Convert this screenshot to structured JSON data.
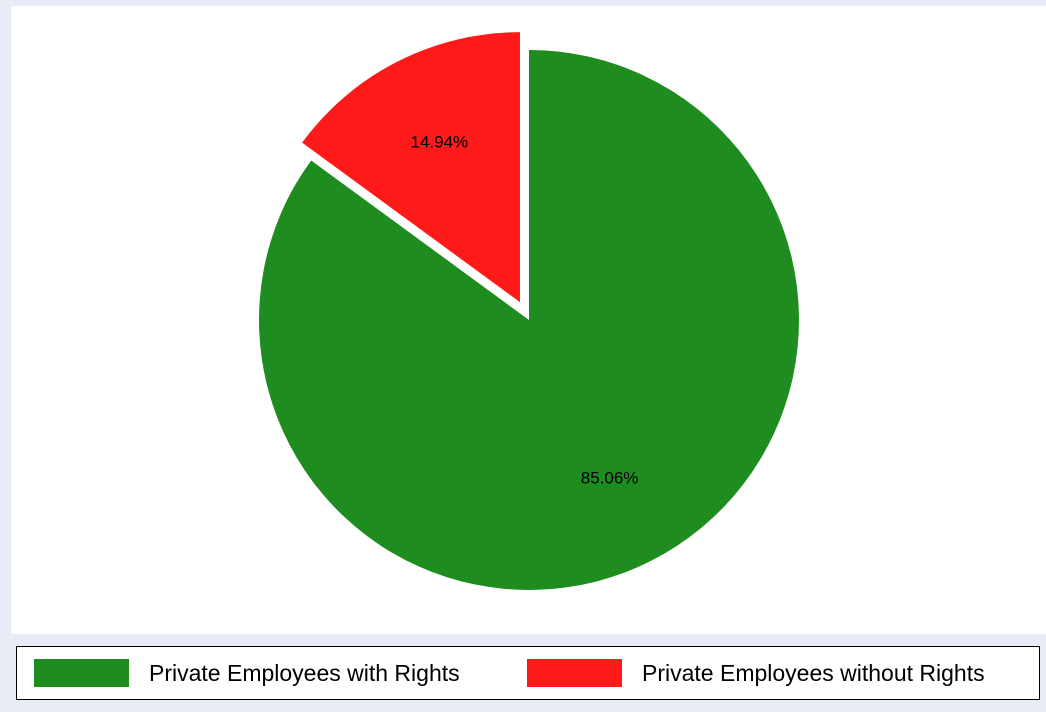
{
  "chart_data": {
    "type": "pie",
    "title": "",
    "slices": [
      {
        "name": "Private Employees with Rights",
        "value": 85.06,
        "label": "85.06%",
        "color": "#1e8c1e",
        "exploded": false
      },
      {
        "name": "Private Employees without Rights",
        "value": 14.94,
        "label": "14.94%",
        "color": "#ff1a1a",
        "exploded": true
      }
    ],
    "start_angle_deg": 90,
    "direction": "clockwise",
    "legend": {
      "placement": "bottom",
      "entries": [
        "Private Employees with Rights",
        "Private Employees without Rights"
      ]
    }
  }
}
